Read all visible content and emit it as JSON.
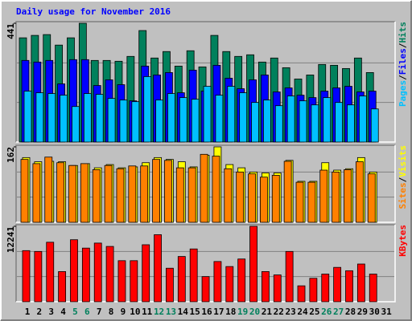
{
  "title": "Daily usage for November 2016",
  "chart_data": [
    {
      "type": "bar",
      "ylim": [
        0,
        441
      ],
      "yticks": [
        441
      ],
      "legend_separator": "/",
      "series": [
        {
          "name": "Hits",
          "color": "#00805c",
          "values": [
            387,
            396,
            399,
            360,
            387,
            441,
            303,
            303,
            300,
            318,
            414,
            312,
            336,
            282,
            339,
            279,
            396,
            336,
            318,
            324,
            297,
            312,
            276,
            234,
            249,
            288,
            285,
            273,
            312,
            258,
            null
          ]
        },
        {
          "name": "Files",
          "color": "#0000ff",
          "values": [
            303,
            297,
            303,
            216,
            306,
            306,
            210,
            231,
            213,
            153,
            282,
            249,
            258,
            183,
            267,
            189,
            285,
            237,
            198,
            231,
            249,
            186,
            201,
            174,
            165,
            189,
            201,
            207,
            186,
            189,
            null
          ]
        },
        {
          "name": "Pages",
          "color": "#00c0ff",
          "values": [
            189,
            183,
            180,
            174,
            132,
            180,
            177,
            162,
            156,
            150,
            243,
            156,
            180,
            165,
            159,
            207,
            174,
            207,
            183,
            147,
            156,
            135,
            171,
            153,
            138,
            165,
            147,
            138,
            171,
            123,
            null
          ]
        }
      ]
    },
    {
      "type": "bar",
      "ylim": [
        0,
        162
      ],
      "yticks": [
        162
      ],
      "legend_separator": "/",
      "series": [
        {
          "name": "Visits",
          "color": "#ffff00",
          "values": [
            139,
            130,
            131,
            130,
            122,
            126,
            117,
            124,
            117,
            119,
            128,
            139,
            135,
            130,
            119,
            144,
            162,
            124,
            117,
            108,
            106,
            106,
            133,
            88,
            88,
            128,
            112,
            115,
            139,
            108,
            null
          ]
        },
        {
          "name": "Sites",
          "color": "#ff8000",
          "values": [
            135,
            126,
            140,
            128,
            122,
            126,
            113,
            122,
            115,
            121,
            121,
            135,
            133,
            117,
            117,
            146,
            142,
            115,
            108,
            104,
            97,
            101,
            131,
            86,
            86,
            112,
            108,
            113,
            130,
            104,
            null
          ]
        }
      ]
    },
    {
      "type": "bar",
      "ylim": [
        0,
        12241
      ],
      "yticks": [
        12241
      ],
      "legend_separator": "/",
      "series": [
        {
          "name": "KBytes",
          "color": "#ff0000",
          "values": [
            8296,
            8160,
            9656,
            4896,
            10064,
            8704,
            9520,
            8976,
            6664,
            6664,
            9248,
            10880,
            5440,
            7344,
            8568,
            4080,
            6528,
            5712,
            6936,
            12241,
            4896,
            4352,
            8160,
            2584,
            3808,
            4488,
            5576,
            5032,
            6120,
            4488,
            null
          ]
        }
      ],
      "categories": [
        "1",
        "2",
        "3",
        "4",
        "5",
        "6",
        "7",
        "8",
        "9",
        "10",
        "11",
        "12",
        "13",
        "14",
        "15",
        "16",
        "17",
        "18",
        "19",
        "20",
        "21",
        "22",
        "23",
        "24",
        "25",
        "26",
        "27",
        "28",
        "29",
        "30",
        "31"
      ],
      "category_colors": [
        "#000000",
        "#000000",
        "#000000",
        "#000000",
        "#00805c",
        "#00805c",
        "#000000",
        "#000000",
        "#000000",
        "#000000",
        "#000000",
        "#00805c",
        "#00805c",
        "#000000",
        "#000000",
        "#000000",
        "#000000",
        "#000000",
        "#00805c",
        "#00805c",
        "#000000",
        "#000000",
        "#000000",
        "#000000",
        "#000000",
        "#00805c",
        "#00805c",
        "#000000",
        "#000000",
        "#000000",
        "#000000"
      ]
    }
  ]
}
